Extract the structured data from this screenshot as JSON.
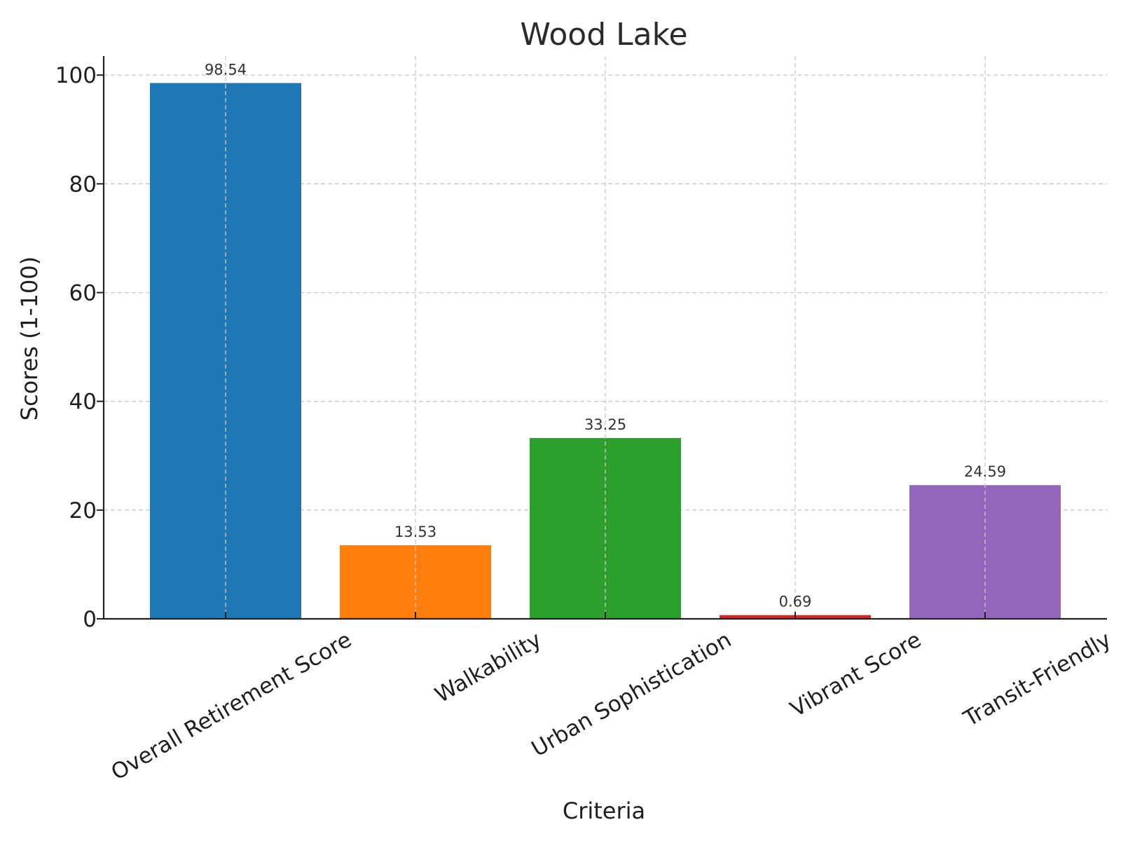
{
  "chart_data": {
    "type": "bar",
    "title": "Wood Lake",
    "xlabel": "Criteria",
    "ylabel": "Scores (1-100)",
    "categories": [
      "Overall Retirement Score",
      "Walkability",
      "Urban Sophistication",
      "Vibrant Score",
      "Transit-Friendly"
    ],
    "values": [
      98.54,
      13.53,
      33.25,
      0.69,
      24.59
    ],
    "value_labels": [
      "98.54",
      "13.53",
      "33.25",
      "0.69",
      "24.59"
    ],
    "colors": [
      "#1f77b4",
      "#ff7f0e",
      "#2ca02c",
      "#d62728",
      "#9467bd"
    ],
    "ylim": [
      0,
      103.5
    ],
    "yticks": [
      0,
      20,
      40,
      60,
      80,
      100
    ],
    "ytick_labels": [
      "0",
      "20",
      "40",
      "60",
      "80",
      "100"
    ],
    "grid": true,
    "legend": "none"
  }
}
